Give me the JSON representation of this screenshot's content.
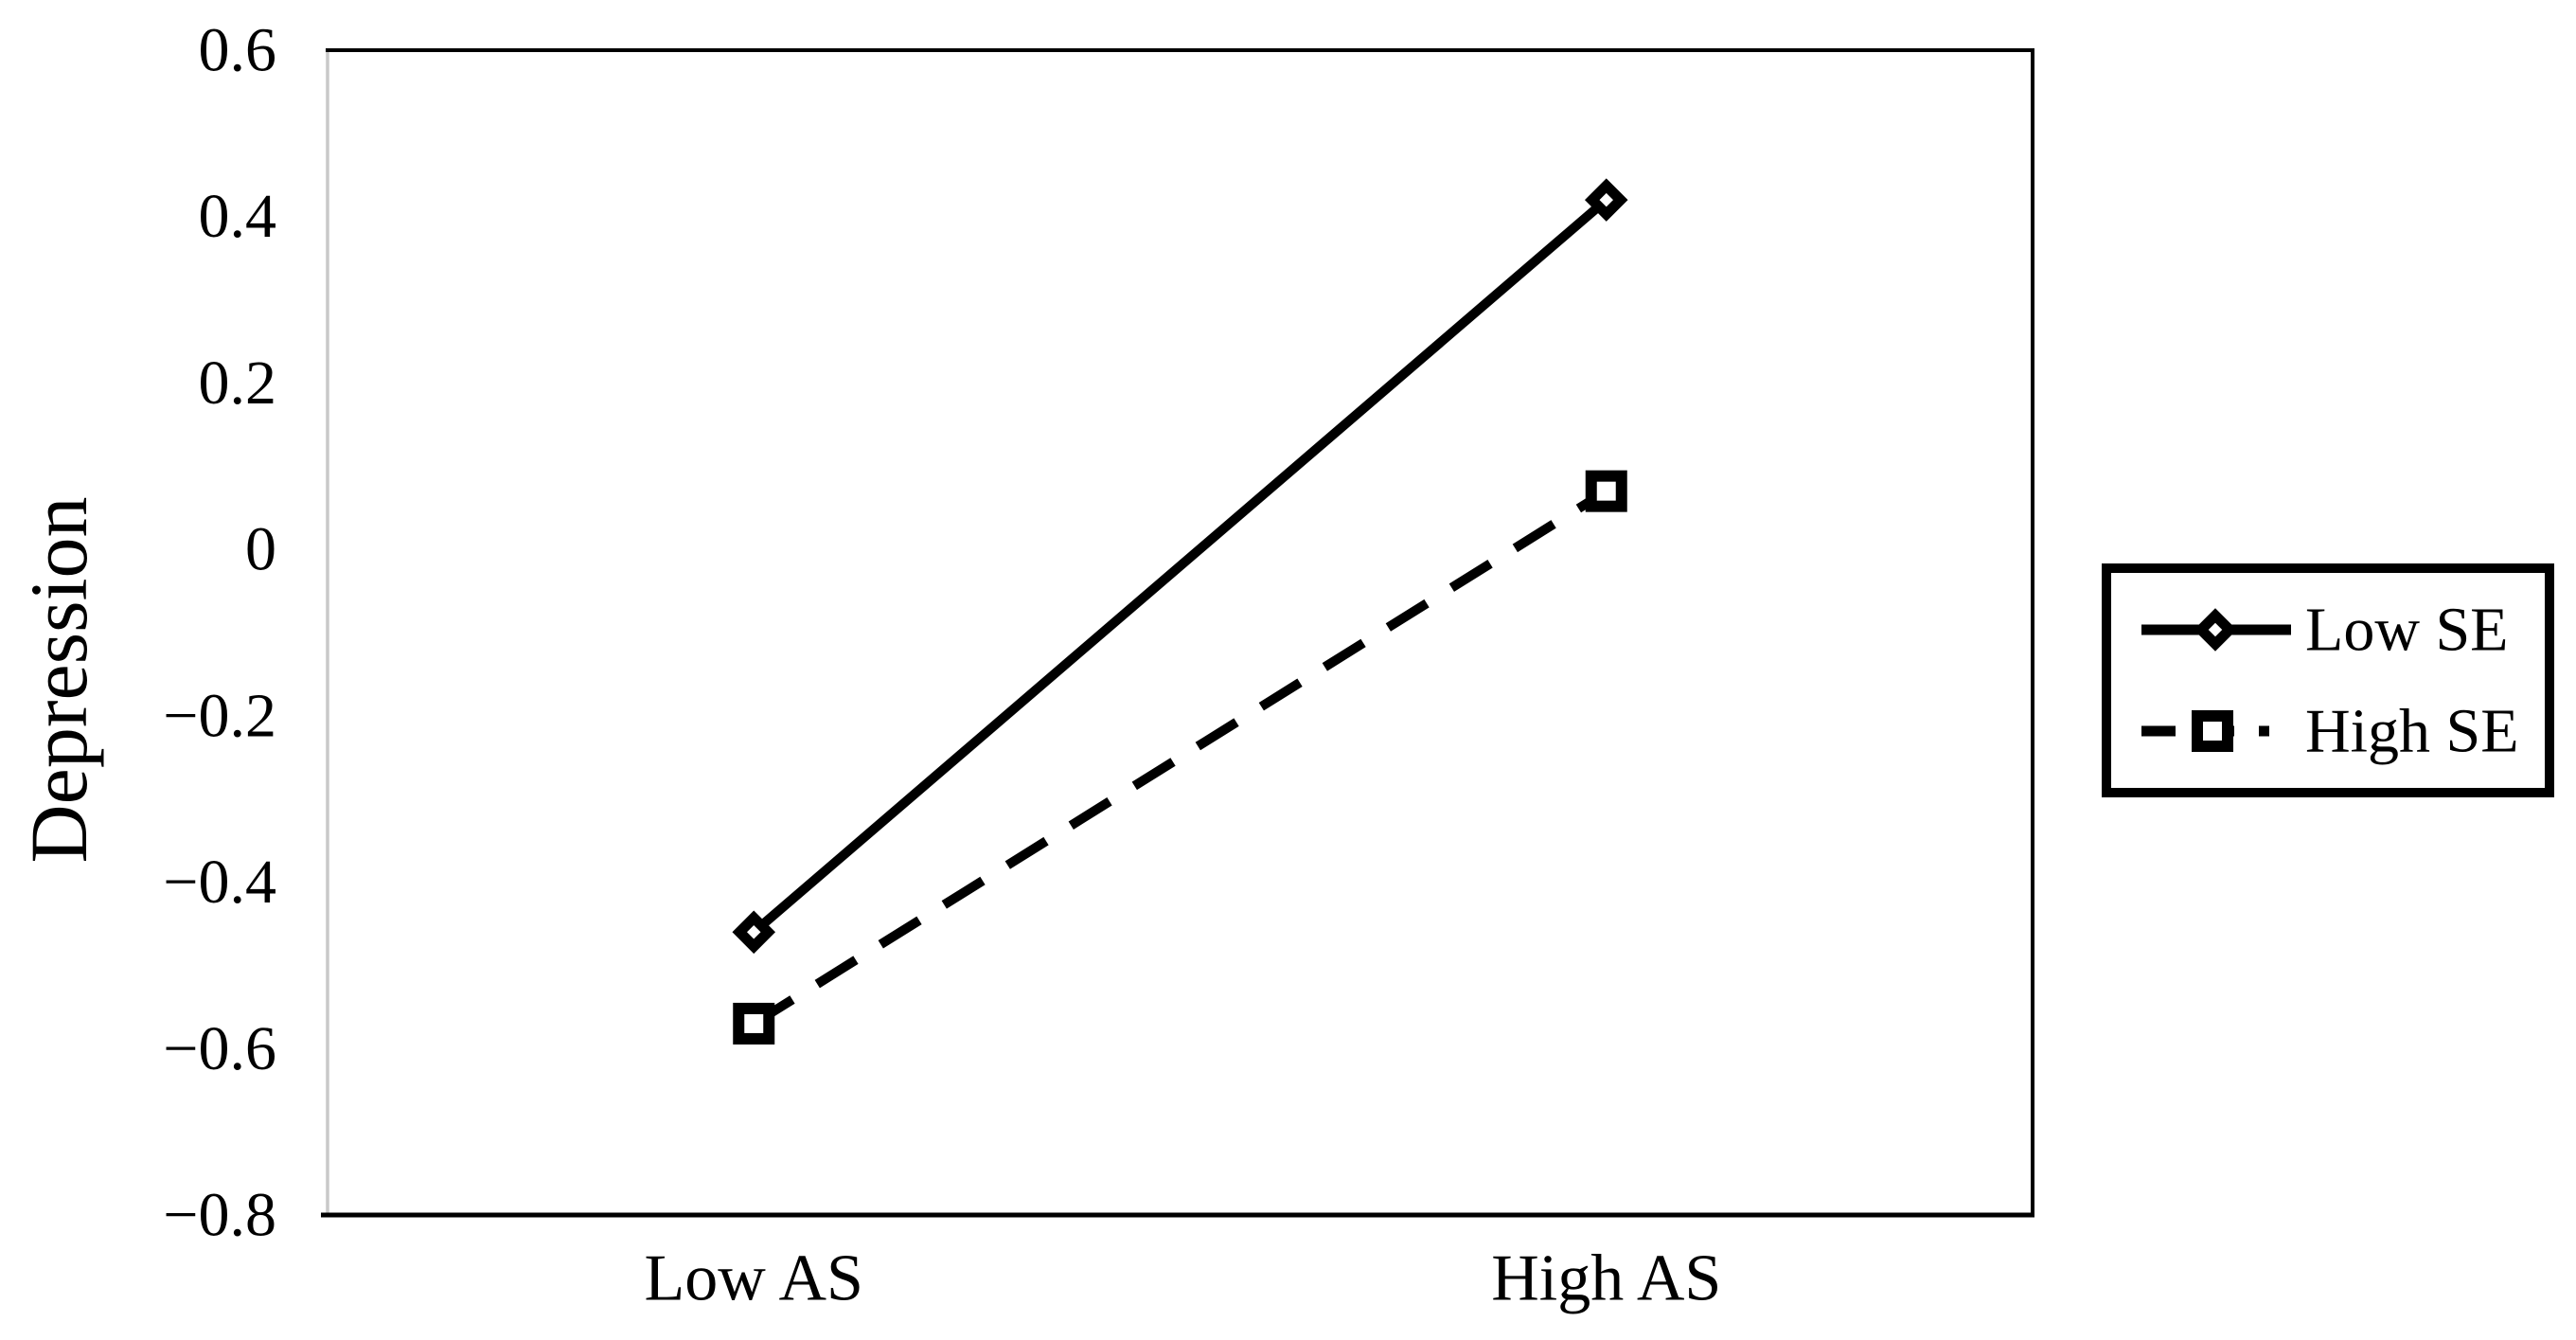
{
  "chart_data": {
    "type": "line",
    "title": "",
    "xlabel": "",
    "ylabel": "Depression",
    "categories": [
      "Low AS",
      "High AS"
    ],
    "series": [
      {
        "name": "Low SE",
        "values": [
          -0.46,
          0.42
        ],
        "line_style": "solid",
        "marker": "diamond",
        "color": "#000000"
      },
      {
        "name": "High SE",
        "values": [
          -0.57,
          0.07
        ],
        "line_style": "dashed",
        "marker": "square",
        "color": "#000000"
      }
    ],
    "ylim": [
      -0.8,
      0.6
    ],
    "ytick_step": 0.2,
    "yticks": [
      "0.6",
      "0.4",
      "0.2",
      "0",
      "−0.2",
      "−0.4",
      "−0.6",
      "−0.8"
    ],
    "grid": false,
    "legend_position": "right-outside",
    "legend_border": true,
    "colors": {
      "series": "#000000",
      "frame": "#000000",
      "left_axis": "#c9c9c9",
      "text": "#000000",
      "background": "#ffffff"
    }
  }
}
